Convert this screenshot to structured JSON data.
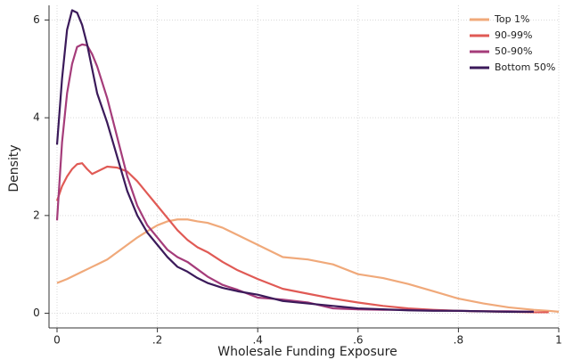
{
  "chart_data": {
    "type": "line",
    "x_label": "Wholesale Funding Exposure",
    "y_label": "Density",
    "x": [
      0,
      0.01,
      0.02,
      0.03,
      0.04,
      0.05,
      0.06,
      0.07,
      0.08,
      0.1,
      0.12,
      0.14,
      0.16,
      0.18,
      0.2,
      0.22,
      0.24,
      0.26,
      0.28,
      0.3,
      0.33,
      0.36,
      0.4,
      0.45,
      0.5,
      0.55,
      0.6,
      0.65,
      0.7,
      0.75,
      0.8,
      0.85,
      0.9,
      0.95,
      0.98,
      1.0
    ],
    "series": [
      {
        "name": "Top 1%",
        "color": "#f0a97a",
        "values": [
          0.62,
          0.66,
          0.7,
          0.75,
          0.8,
          0.85,
          0.9,
          0.95,
          1.0,
          1.1,
          1.25,
          1.4,
          1.55,
          1.68,
          1.8,
          1.88,
          1.92,
          1.92,
          1.88,
          1.85,
          1.75,
          1.6,
          1.4,
          1.15,
          1.1,
          1.0,
          0.8,
          0.72,
          0.6,
          0.45,
          0.3,
          0.2,
          0.12,
          0.07,
          0.05,
          0.03
        ]
      },
      {
        "name": "90-99%",
        "color": "#e05a55",
        "values": [
          2.3,
          2.6,
          2.8,
          2.95,
          3.05,
          3.07,
          2.95,
          2.85,
          2.9,
          3.0,
          2.98,
          2.9,
          2.7,
          2.45,
          2.2,
          1.95,
          1.7,
          1.5,
          1.35,
          1.25,
          1.05,
          0.88,
          0.7,
          0.5,
          0.4,
          0.3,
          0.22,
          0.15,
          0.1,
          0.07,
          0.05,
          0.04,
          0.03,
          0.02,
          0.02,
          null
        ]
      },
      {
        "name": "50-90%",
        "color": "#a53c7a",
        "values": [
          1.9,
          3.5,
          4.5,
          5.1,
          5.45,
          5.5,
          5.48,
          5.3,
          5.05,
          4.4,
          3.6,
          2.8,
          2.2,
          1.8,
          1.55,
          1.3,
          1.15,
          1.05,
          0.9,
          0.75,
          0.58,
          0.48,
          0.32,
          0.28,
          0.22,
          0.1,
          0.08,
          0.07,
          0.07,
          0.06,
          0.05,
          0.04,
          0.04,
          0.03,
          null,
          null
        ]
      },
      {
        "name": "Bottom 50%",
        "color": "#3b1a5a",
        "values": [
          3.45,
          4.8,
          5.8,
          6.2,
          6.15,
          5.9,
          5.5,
          5.0,
          4.5,
          3.9,
          3.2,
          2.5,
          2.0,
          1.65,
          1.4,
          1.15,
          0.95,
          0.85,
          0.72,
          0.62,
          0.52,
          0.45,
          0.38,
          0.25,
          0.2,
          0.15,
          0.1,
          0.08,
          0.06,
          0.05,
          0.05,
          0.04,
          0.03,
          0.03,
          null,
          null
        ]
      }
    ],
    "xlim": [
      0,
      1
    ],
    "ylim": [
      -0.3,
      6.3
    ],
    "xticks": [
      0,
      {
        "value": 0.2,
        "label": ".2"
      },
      {
        "value": 0.4,
        "label": ".4"
      },
      {
        "value": 0.6,
        "label": ".6"
      },
      {
        "value": 0.8,
        "label": ".8"
      },
      1
    ],
    "yticks": [
      0,
      2,
      4,
      6
    ],
    "grid": true,
    "legend": "top-right"
  }
}
